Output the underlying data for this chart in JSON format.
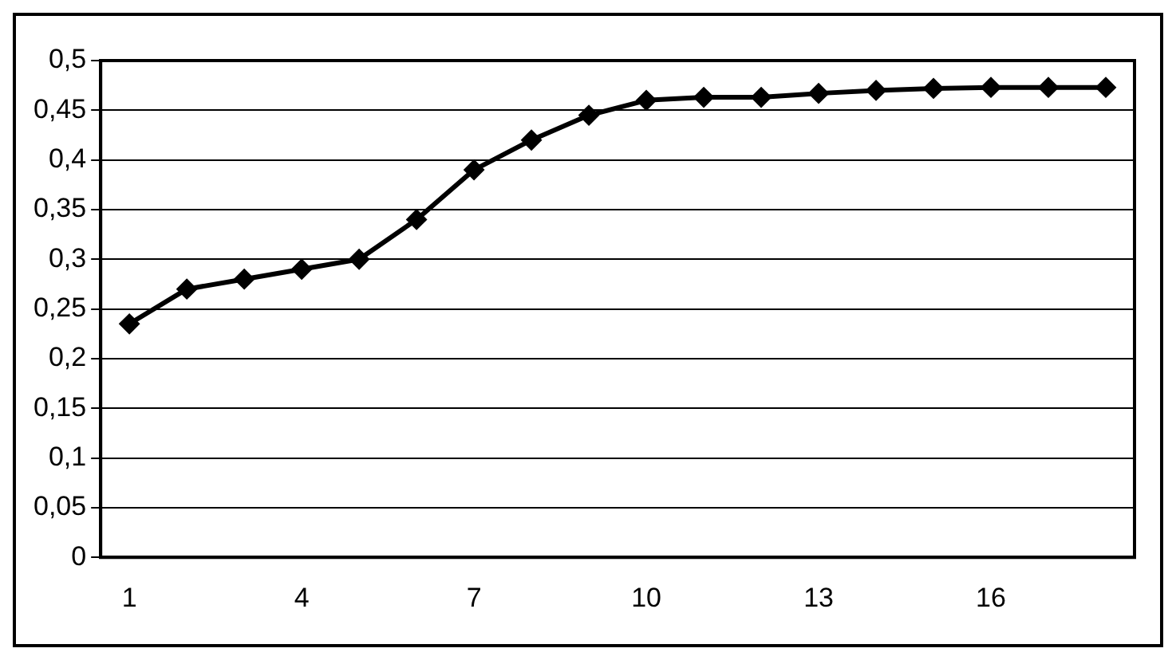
{
  "chart_data": {
    "type": "line",
    "categories": [
      "1",
      null,
      null,
      "4",
      null,
      null,
      "7",
      null,
      null,
      "10",
      null,
      null,
      "13",
      null,
      null,
      "16",
      null,
      null
    ],
    "series": [
      {
        "color": "#000000",
        "values": [
          0.235,
          0.27,
          0.28,
          0.29,
          0.3,
          0.34,
          0.39,
          0.42,
          0.445,
          0.46,
          0.463,
          0.463,
          0.467,
          0.47,
          0.472,
          0.473,
          0.473,
          0.473
        ]
      }
    ],
    "ylim": [
      0,
      0.5
    ],
    "yticks": [
      0,
      {
        "value": 0.05,
        "label": "0,05"
      },
      {
        "value": 0.1,
        "label": "0,1"
      },
      {
        "value": 0.15,
        "label": "0,15"
      },
      {
        "value": 0.2,
        "label": "0,2"
      },
      {
        "value": 0.25,
        "label": "0,25"
      },
      {
        "value": 0.3,
        "label": "0,3"
      },
      {
        "value": 0.35,
        "label": "0,35"
      },
      {
        "value": 0.4,
        "label": "0,4"
      },
      {
        "value": 0.45,
        "label": "0,45"
      },
      {
        "value": 0.5,
        "label": "0,5"
      }
    ],
    "grid": "y",
    "legend": false,
    "marker": "diamond",
    "line_style": "solid"
  }
}
